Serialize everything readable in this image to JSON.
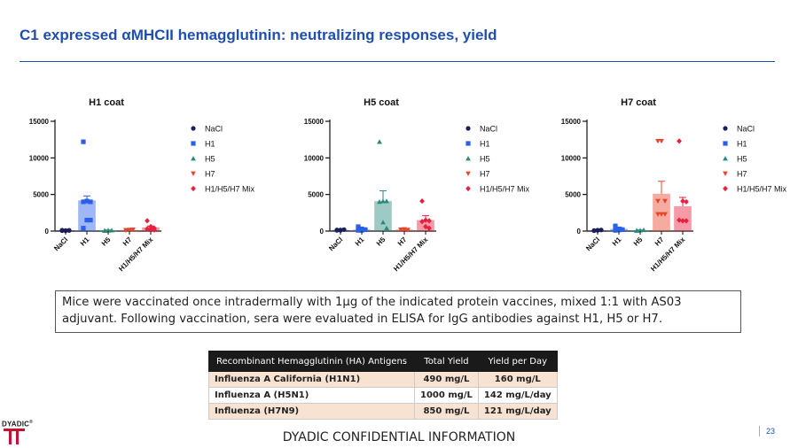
{
  "slide": {
    "title": "C1 expressed αMHCII hemagglutinin: neutralizing responses, yield",
    "caption": "Mice were vaccinated once intradermally with 1µg of the indicated protein vaccines, mixed 1:1 with AS03 adjuvant. Following vaccination, sera were evaluated in ELISA for IgG antibodies against H1, H5 or H7.",
    "footer": "DYADIC CONFIDENTIAL INFORMATION",
    "page_number": "23",
    "logo_text": "DYADIC",
    "logo_reg": "®"
  },
  "colors": {
    "title": "#1f4fb0",
    "NaCl": "#1b1f5c",
    "H1": "#2a5fe8",
    "H5": "#2a8a7a",
    "H7": "#e8442a",
    "Mix": "#e8203c"
  },
  "series_markers": [
    "circle",
    "square",
    "triangle-up",
    "triangle-down",
    "diamond"
  ],
  "chart_data": [
    {
      "type": "scatter",
      "title": "H1 coat",
      "categories": [
        "NaCl",
        "H1",
        "H5",
        "H7",
        "H1/H5/H7 Mix"
      ],
      "legend": [
        "NaCl",
        "H1",
        "H5",
        "H7",
        "H1/H5/H7 Mix"
      ],
      "ylim": [
        0,
        15000
      ],
      "yticks": [
        "0",
        "5000",
        "10000",
        "15000"
      ],
      "legend_position": "right",
      "series": [
        {
          "name": "NaCl",
          "mean": 100,
          "error": 50,
          "points": [
            50,
            80,
            100,
            120,
            60,
            90
          ]
        },
        {
          "name": "H1",
          "mean": 4200,
          "error": 600,
          "points": [
            12200,
            4100,
            4000,
            4000,
            1500,
            1500,
            400
          ]
        },
        {
          "name": "H5",
          "mean": 100,
          "error": 50,
          "points": [
            50,
            80,
            100,
            60,
            90
          ]
        },
        {
          "name": "H7",
          "mean": 150,
          "error": 50,
          "points": [
            100,
            150,
            200,
            120,
            150
          ]
        },
        {
          "name": "H1/H5/H7 Mix",
          "mean": 500,
          "error": 200,
          "points": [
            1400,
            600,
            400,
            300,
            200,
            150
          ]
        }
      ]
    },
    {
      "type": "scatter",
      "title": "H5 coat",
      "categories": [
        "NaCl",
        "H1",
        "H5",
        "H7",
        "H1/H5/H7 Mix"
      ],
      "legend": [
        "NaCl",
        "H1",
        "H5",
        "H7",
        "H1/H5/H7 Mix"
      ],
      "ylim": [
        0,
        15000
      ],
      "yticks": [
        "0",
        "5000",
        "10000",
        "15000"
      ],
      "legend_position": "right",
      "series": [
        {
          "name": "NaCl",
          "mean": 150,
          "error": 50,
          "points": [
            100,
            150,
            200,
            150,
            100
          ]
        },
        {
          "name": "H1",
          "mean": 200,
          "error": 200,
          "points": [
            600,
            300,
            200,
            100,
            100
          ]
        },
        {
          "name": "H5",
          "mean": 4100,
          "error": 1400,
          "points": [
            12200,
            4100,
            4100,
            4000,
            1200,
            400
          ]
        },
        {
          "name": "H7",
          "mean": 200,
          "error": 50,
          "points": [
            200,
            250,
            150,
            200,
            150
          ]
        },
        {
          "name": "H1/H5/H7 Mix",
          "mean": 1500,
          "error": 600,
          "points": [
            4100,
            1500,
            1400,
            1300,
            600,
            400
          ]
        }
      ]
    },
    {
      "type": "scatter",
      "title": "H7 coat",
      "categories": [
        "NaCl",
        "H1",
        "H5",
        "H7",
        "H1/H5/H7 Mix"
      ],
      "legend": [
        "NaCl",
        "H1",
        "H5",
        "H7",
        "H1/H5/H7 Mix"
      ],
      "ylim": [
        0,
        15000
      ],
      "yticks": [
        "0",
        "5000",
        "10000",
        "15000"
      ],
      "legend_position": "right",
      "series": [
        {
          "name": "NaCl",
          "mean": 100,
          "error": 50,
          "points": [
            50,
            100,
            150,
            80,
            120
          ]
        },
        {
          "name": "H1",
          "mean": 300,
          "error": 200,
          "points": [
            700,
            300,
            200,
            100,
            150
          ]
        },
        {
          "name": "H5",
          "mean": 100,
          "error": 50,
          "points": [
            50,
            100,
            150,
            80
          ]
        },
        {
          "name": "H7",
          "mean": 5100,
          "error": 1700,
          "points": [
            12300,
            12300,
            4100,
            4100,
            2300,
            2300,
            2300
          ]
        },
        {
          "name": "H1/H5/H7 Mix",
          "mean": 3400,
          "error": 1200,
          "points": [
            12300,
            4100,
            4000,
            1500,
            1400,
            1400
          ]
        }
      ]
    }
  ],
  "table": {
    "headers": [
      "Recombinant Hemagglutinin (HA) Antigens",
      "Total Yield",
      "Yield per Day"
    ],
    "rows": [
      [
        "Influenza A California (H1N1)",
        "490 mg/L",
        "160 mg/L"
      ],
      [
        "Influenza A (H5N1)",
        "1000 mg/L",
        "142 mg/L/day"
      ],
      [
        "Influenza (H7N9)",
        "850 mg/L",
        "121 mg/L/day"
      ]
    ]
  }
}
